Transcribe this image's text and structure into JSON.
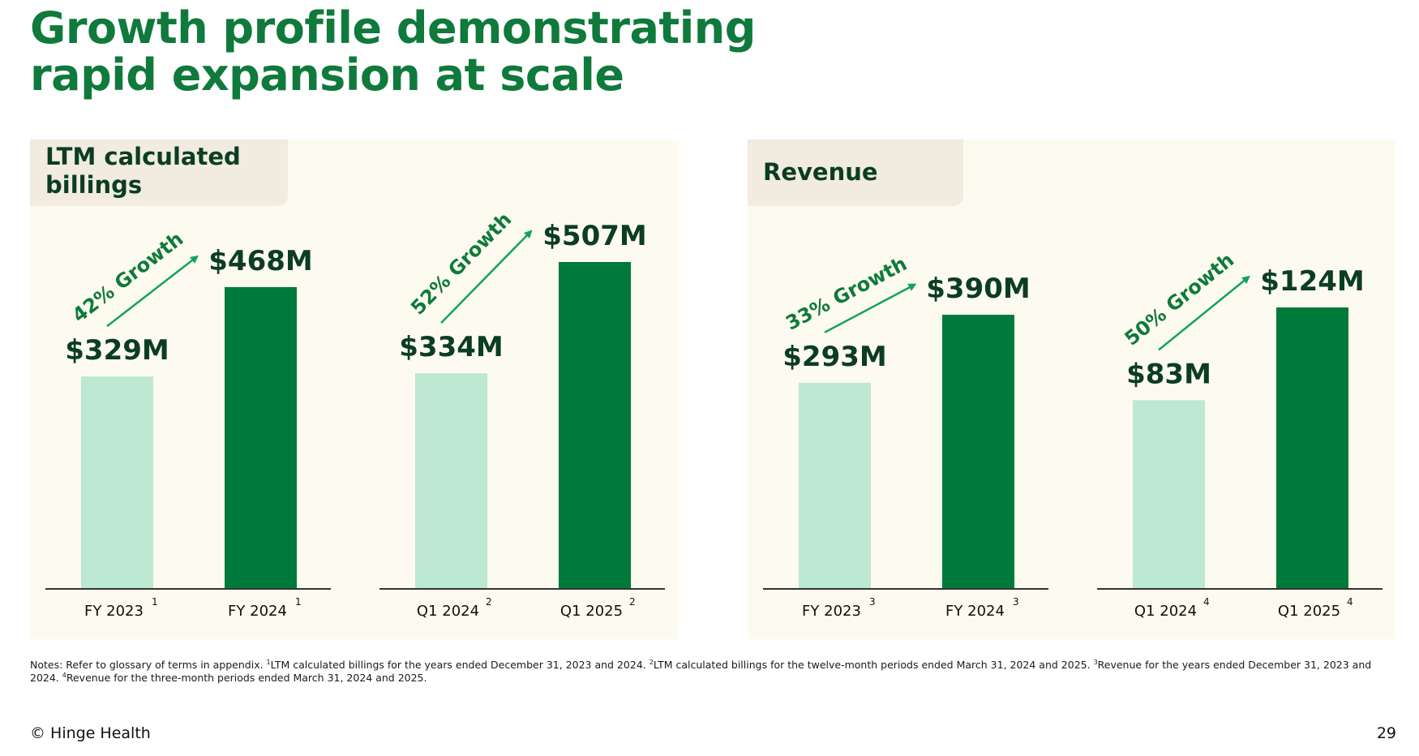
{
  "slide": {
    "title_lines": [
      "Growth profile demonstrating",
      "rapid expansion at scale"
    ],
    "footer_left": "© Hinge Health",
    "page_number": "29"
  },
  "notes": {
    "lead": "Notes: Refer to glossary of terms in appendix. ",
    "items": [
      {
        "sup": "1",
        "text": "LTM calculated billings for the years ended December 31, 2023 and 2024. "
      },
      {
        "sup": "2",
        "text": "LTM calculated billings for the twelve-month periods ended March 31, 2024 and 2025. "
      },
      {
        "sup": "3",
        "text": "Revenue for the years ended December 31, 2023 and 2024. "
      },
      {
        "sup": "4",
        "text": "Revenue for the three-month periods ended March 31, 2024 and 2025."
      }
    ]
  },
  "colors": {
    "title_green": "#0f7a3b",
    "bar_dark": "#007a3a",
    "bar_light": "#bde8d1",
    "arrow": "#12a35b",
    "label_dark": "#0b3d22",
    "panel_bg": "#fdfaef",
    "tab_bg": "#f1ebe0"
  },
  "panels": [
    {
      "name": "billings",
      "title_lines": [
        "LTM calculated",
        "billings"
      ]
    },
    {
      "name": "revenue",
      "title_lines": [
        "Revenue"
      ]
    }
  ],
  "chart_data": [
    {
      "type": "bar",
      "panel": "LTM calculated billings",
      "categories": [
        "FY 2023",
        "FY 2024"
      ],
      "footnotes": [
        "1",
        "1"
      ],
      "values": [
        329,
        468
      ],
      "value_labels": [
        "$329M",
        "$468M"
      ],
      "growth_label": "42% Growth",
      "unit": "$M"
    },
    {
      "type": "bar",
      "panel": "LTM calculated billings",
      "categories": [
        "Q1 2024",
        "Q1 2025"
      ],
      "footnotes": [
        "2",
        "2"
      ],
      "values": [
        334,
        507
      ],
      "value_labels": [
        "$334M",
        "$507M"
      ],
      "growth_label": "52% Growth",
      "unit": "$M"
    },
    {
      "type": "bar",
      "panel": "Revenue",
      "categories": [
        "FY 2023",
        "FY 2024"
      ],
      "footnotes": [
        "3",
        "3"
      ],
      "values": [
        293,
        390
      ],
      "value_labels": [
        "$293M",
        "$390M"
      ],
      "growth_label": "33% Growth",
      "unit": "$M"
    },
    {
      "type": "bar",
      "panel": "Revenue",
      "categories": [
        "Q1 2024",
        "Q1 2025"
      ],
      "footnotes": [
        "4",
        "4"
      ],
      "values": [
        83,
        124
      ],
      "value_labels": [
        "$83M",
        "$124M"
      ],
      "growth_label": "50% Growth",
      "unit": "$M"
    }
  ]
}
